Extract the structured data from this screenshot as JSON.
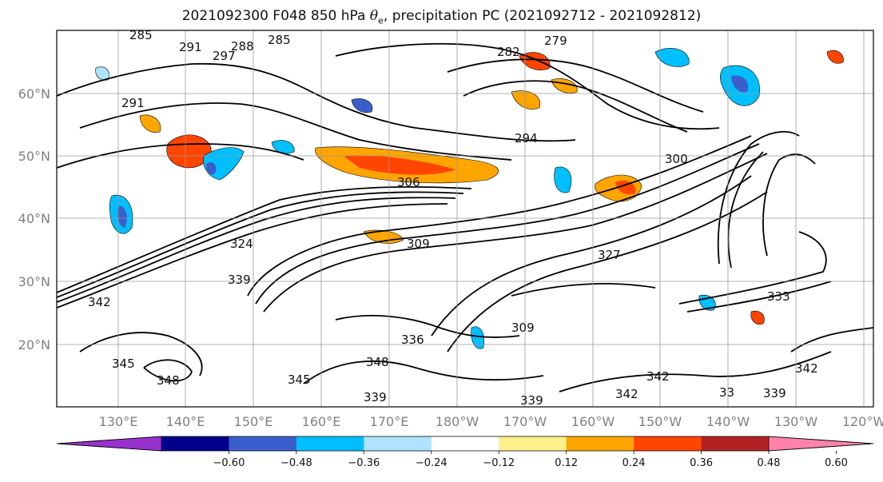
{
  "map": {
    "title_prefix": "2021092300 F048 850 hPa ",
    "title_symbol": "θ",
    "title_subscript": "e",
    "title_suffix": ", precipitation PC (2021092712 - 2021092812)",
    "lat_labels": [
      "60°N",
      "50°N",
      "40°N",
      "30°N",
      "20°N"
    ],
    "lon_labels": [
      "130°E",
      "140°E",
      "150°E",
      "160°E",
      "170°E",
      "180°W",
      "170°W",
      "160°W",
      "150°W",
      "140°W",
      "130°W",
      "120°W"
    ],
    "contour_labels": [
      "285",
      "291",
      "288",
      "285",
      "297",
      "279",
      "282",
      "291",
      "294",
      "300",
      "306",
      "309",
      "327",
      "324",
      "339",
      "333",
      "342",
      "345",
      "348",
      "345",
      "336",
      "348",
      "339",
      "339",
      "342",
      "342",
      "339",
      "342",
      "33",
      "309"
    ]
  },
  "colorbar": {
    "colors": [
      "#9932cc",
      "#00008b",
      "#3a5fcd",
      "#00bfff",
      "#afe3ff",
      "#ffffff",
      "#fff08c",
      "#ffa500",
      "#ff4500",
      "#b22222",
      "#ff82ab"
    ],
    "ticks": [
      "−0.60",
      "−0.48",
      "−0.36",
      "−0.24",
      "−0.12",
      "0.12",
      "0.24",
      "0.36",
      "0.48",
      "0.60"
    ]
  }
}
